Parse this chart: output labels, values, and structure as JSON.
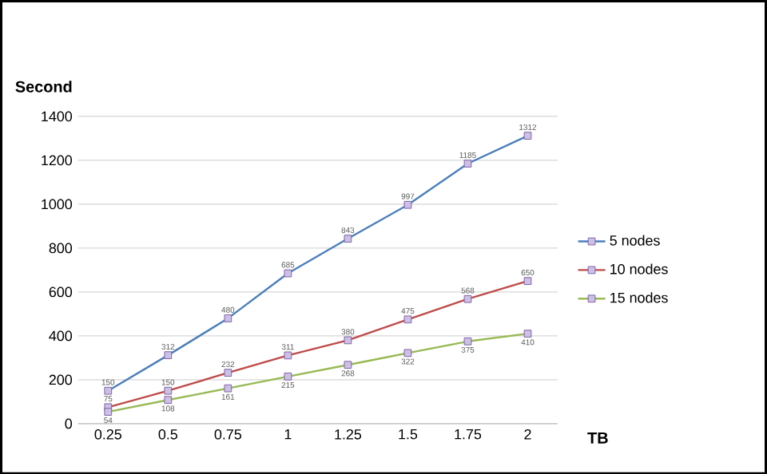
{
  "chart_data": {
    "type": "line",
    "xlabel": "TB",
    "ylabel": "Second",
    "categories": [
      "0.25",
      "0.5",
      "0.75",
      "1",
      "1.25",
      "1.5",
      "1.75",
      "2"
    ],
    "series": [
      {
        "name": "5 nodes",
        "color": "#4a7ebb",
        "values": [
          150,
          312,
          480,
          685,
          843,
          997,
          1185,
          1312
        ]
      },
      {
        "name": "10 nodes",
        "color": "#be4b48",
        "values": [
          75,
          150,
          232,
          311,
          380,
          475,
          568,
          650
        ]
      },
      {
        "name": "15 nodes",
        "color": "#98b954",
        "values": [
          54,
          108,
          161,
          215,
          268,
          322,
          375,
          410
        ]
      }
    ],
    "ylim": [
      0,
      1400
    ],
    "yticks": [
      0,
      200,
      400,
      600,
      800,
      1000,
      1200,
      1400
    ],
    "grid": "y",
    "legend": "right",
    "marker": "square",
    "line_style": "solid",
    "data_labels": true
  }
}
